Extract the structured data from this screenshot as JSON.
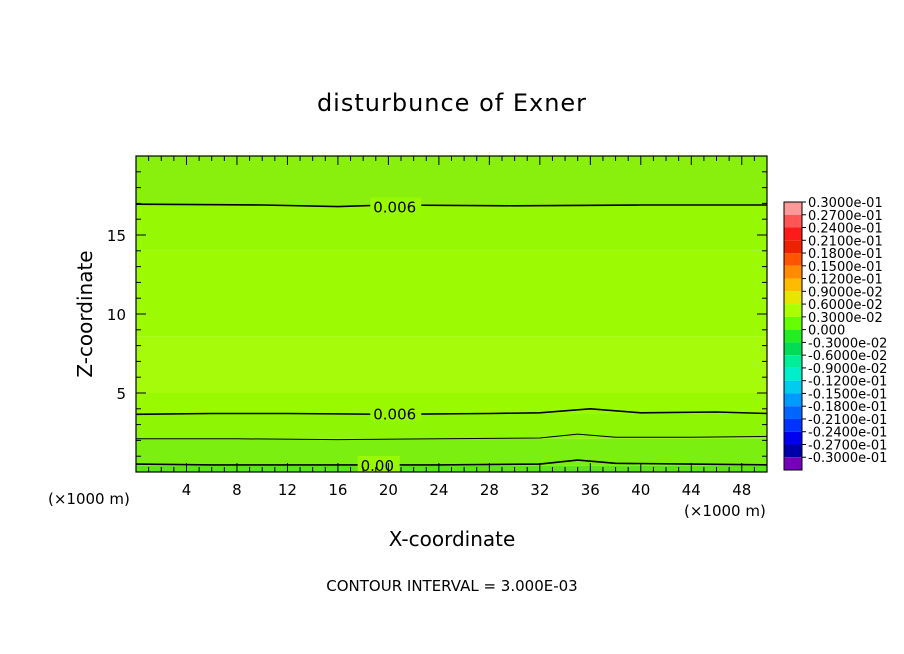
{
  "chart_data": {
    "type": "heatmap",
    "title": "disturbunce of Exner",
    "xlabel": "X-coordinate",
    "ylabel": "Z-coordinate",
    "x_unit_left": "(×1000 m)",
    "x_unit_right": "(×1000 m)",
    "xlim": [
      0,
      50
    ],
    "ylim": [
      0,
      20
    ],
    "x_ticks": [
      4,
      8,
      12,
      16,
      20,
      24,
      28,
      32,
      36,
      40,
      44,
      48
    ],
    "y_ticks": [
      5,
      10,
      15
    ],
    "footer": "CONTOUR INTERVAL = 3.000E-03",
    "colorbar": {
      "labels": [
        "0.3000e-01",
        "0.2700e-01",
        "0.2400e-01",
        "0.2100e-01",
        "0.1800e-01",
        "0.1500e-01",
        "0.1200e-01",
        "0.9000e-02",
        "0.6000e-02",
        "0.3000e-02",
        "0.000",
        "-0.3000e-02",
        "-0.6000e-02",
        "-0.9000e-02",
        "-0.1200e-01",
        "-0.1500e-01",
        "-0.1800e-01",
        "-0.2100e-01",
        "-0.2400e-01",
        "-0.2700e-01",
        "-0.3000e-01"
      ],
      "colors": [
        "#ff9999",
        "#ff5555",
        "#ff1a1a",
        "#ee2200",
        "#ff5500",
        "#ff8c00",
        "#ffbb00",
        "#e6e600",
        "#aaff00",
        "#66ff00",
        "#22ee22",
        "#00dd55",
        "#00ee99",
        "#00eecc",
        "#00ccee",
        "#0099ff",
        "#0066ff",
        "#0033ff",
        "#0000ee",
        "#0000aa",
        "#7700bb"
      ]
    },
    "field_bands": [
      {
        "z": [
          0.0,
          0.4
        ],
        "color": "#5ee41a"
      },
      {
        "z": [
          0.4,
          2.1
        ],
        "color": "#7aef10"
      },
      {
        "z": [
          2.1,
          3.7
        ],
        "color": "#8ef505"
      },
      {
        "z": [
          3.7,
          5.0
        ],
        "color": "#99fa00"
      },
      {
        "z": [
          5.0,
          8.6
        ],
        "color": "#a6fb0a"
      },
      {
        "z": [
          8.6,
          14.0
        ],
        "color": "#9cfa02"
      },
      {
        "z": [
          14.0,
          16.9
        ],
        "color": "#96f802"
      },
      {
        "z": [
          16.9,
          20.0
        ],
        "color": "#88f00c"
      }
    ],
    "contours": [
      {
        "label": "0.006",
        "points": [
          [
            0,
            16.95
          ],
          [
            10,
            16.9
          ],
          [
            16,
            16.8
          ],
          [
            20,
            16.9
          ],
          [
            30,
            16.85
          ],
          [
            40,
            16.9
          ],
          [
            50,
            16.9
          ]
        ],
        "label_x": 18.8
      },
      {
        "label": "0.006",
        "points": [
          [
            0,
            3.65
          ],
          [
            6,
            3.7
          ],
          [
            12,
            3.7
          ],
          [
            20,
            3.65
          ],
          [
            28,
            3.7
          ],
          [
            32,
            3.75
          ],
          [
            36,
            4.0
          ],
          [
            40,
            3.75
          ],
          [
            46,
            3.8
          ],
          [
            50,
            3.7
          ]
        ],
        "label_x": 18.8
      },
      {
        "label": "",
        "points": [
          [
            0,
            2.1
          ],
          [
            8,
            2.1
          ],
          [
            16,
            2.05
          ],
          [
            24,
            2.1
          ],
          [
            32,
            2.15
          ],
          [
            35,
            2.4
          ],
          [
            38,
            2.2
          ],
          [
            44,
            2.2
          ],
          [
            50,
            2.25
          ]
        ],
        "label_x": null
      },
      {
        "label": "0.00",
        "points": [
          [
            0,
            0.5
          ],
          [
            6,
            0.45
          ],
          [
            14,
            0.45
          ],
          [
            24,
            0.45
          ],
          [
            32,
            0.5
          ],
          [
            35,
            0.75
          ],
          [
            38,
            0.55
          ],
          [
            44,
            0.5
          ],
          [
            50,
            0.45
          ]
        ],
        "label_x": 17.8
      }
    ]
  }
}
